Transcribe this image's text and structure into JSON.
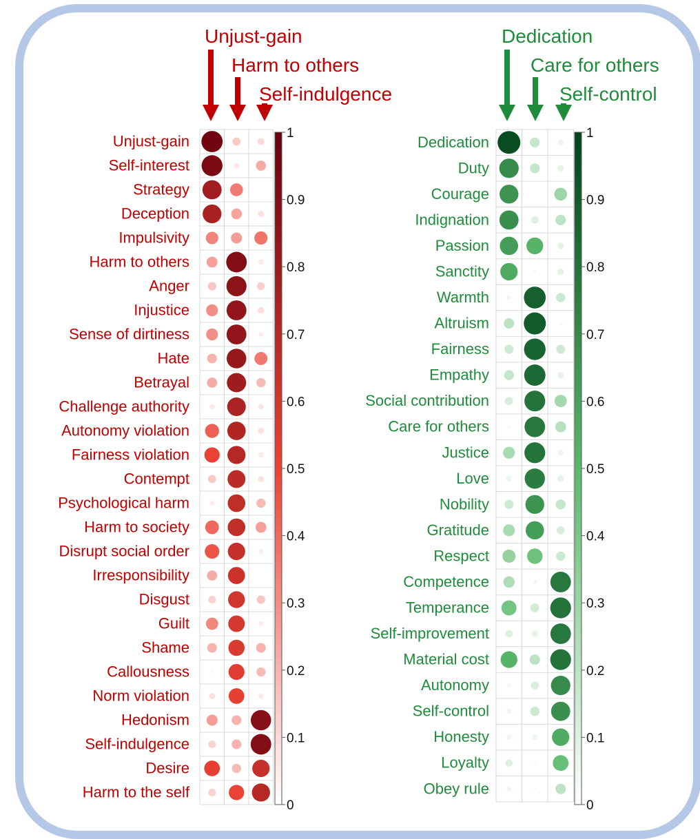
{
  "chart_data": [
    {
      "type": "heatmap",
      "style": "bubble",
      "headers": [
        "Unjust-gain",
        "Harm to others",
        "Self-indulgence"
      ],
      "rows": [
        "Unjust-gain",
        "Self-interest",
        "Strategy",
        "Deception",
        "Impulsivity",
        "Harm to others",
        "Anger",
        "Injustice",
        "Sense of dirtiness",
        "Hate",
        "Betrayal",
        "Challenge authority",
        "Autonomy violation",
        "Fairness violation",
        "Contempt",
        "Psychological harm",
        "Harm to society",
        "Disrupt social order",
        "Irresponsibility",
        "Disgust",
        "Guilt",
        "Shame",
        "Callousness",
        "Norm violation",
        "Hedonism",
        "Self-indulgence",
        "Desire",
        "Harm to the self"
      ],
      "values": [
        [
          0.96,
          0.14,
          0.1
        ],
        [
          0.93,
          0.06,
          0.22
        ],
        [
          0.78,
          0.35,
          0.0
        ],
        [
          0.75,
          0.24,
          0.08
        ],
        [
          0.33,
          0.26,
          0.37
        ],
        [
          0.25,
          0.9,
          0.06
        ],
        [
          0.15,
          0.86,
          0.13
        ],
        [
          0.3,
          0.84,
          0.09
        ],
        [
          0.3,
          0.84,
          0.05
        ],
        [
          0.2,
          0.82,
          0.36
        ],
        [
          0.22,
          0.79,
          0.18
        ],
        [
          0.06,
          0.74,
          0.07
        ],
        [
          0.42,
          0.72,
          0.08
        ],
        [
          0.5,
          0.7,
          0.06
        ],
        [
          0.14,
          0.68,
          0.08
        ],
        [
          0.05,
          0.66,
          0.18
        ],
        [
          0.4,
          0.66,
          0.25
        ],
        [
          0.45,
          0.64,
          0.05
        ],
        [
          0.22,
          0.62,
          0.0
        ],
        [
          0.12,
          0.6,
          0.15
        ],
        [
          0.32,
          0.58,
          0.05
        ],
        [
          0.2,
          0.56,
          0.2
        ],
        [
          0.02,
          0.54,
          0.18
        ],
        [
          0.08,
          0.52,
          0.06
        ],
        [
          0.26,
          0.2,
          0.88
        ],
        [
          0.12,
          0.2,
          0.9
        ],
        [
          0.52,
          0.18,
          0.64
        ],
        [
          0.12,
          0.5,
          0.7
        ]
      ],
      "legend": {
        "ticks": [
          "0",
          "0.1",
          "0.2",
          "0.3",
          "0.4",
          "0.5",
          "0.6",
          "0.7",
          "0.8",
          "0.9",
          "1"
        ],
        "range": [
          0,
          1
        ]
      },
      "colors": {
        "text": "#c00000",
        "low": "#ffffff",
        "mid": "#ea4335",
        "high": "#67000d",
        "arrow": "#c00000"
      }
    },
    {
      "type": "heatmap",
      "style": "bubble",
      "headers": [
        "Dedication",
        "Care for others",
        "Self-control"
      ],
      "rows": [
        "Dedication",
        "Duty",
        "Courage",
        "Indignation",
        "Passion",
        "Sanctity",
        "Warmth",
        "Altruism",
        "Fairness",
        "Empathy",
        "Social contribution",
        "Care for others",
        "Justice",
        "Love",
        "Nobility",
        "Gratitude",
        "Respect",
        "Competence",
        "Temperance",
        "Self-improvement",
        "Material cost",
        "Autonomy",
        "Self-control",
        "Honesty",
        "Loyalty",
        "Obey rule"
      ],
      "values": [
        [
          0.96,
          0.18,
          0.06
        ],
        [
          0.7,
          0.18,
          0.08
        ],
        [
          0.66,
          0.0,
          0.3
        ],
        [
          0.68,
          0.1,
          0.2
        ],
        [
          0.62,
          0.52,
          0.08
        ],
        [
          0.56,
          0.03,
          0.08
        ],
        [
          0.04,
          0.88,
          0.16
        ],
        [
          0.2,
          0.9,
          0.03
        ],
        [
          0.15,
          0.86,
          0.15
        ],
        [
          0.18,
          0.84,
          0.08
        ],
        [
          0.12,
          0.8,
          0.28
        ],
        [
          0.02,
          0.78,
          0.22
        ],
        [
          0.26,
          0.8,
          0.06
        ],
        [
          0.06,
          0.76,
          0.08
        ],
        [
          0.15,
          0.66,
          0.18
        ],
        [
          0.26,
          0.62,
          0.12
        ],
        [
          0.32,
          0.44,
          0.16
        ],
        [
          0.24,
          0.04,
          0.78
        ],
        [
          0.42,
          0.14,
          0.8
        ],
        [
          0.1,
          0.08,
          0.78
        ],
        [
          0.52,
          0.2,
          0.8
        ],
        [
          0.03,
          0.12,
          0.7
        ],
        [
          0.05,
          0.16,
          0.68
        ],
        [
          0.05,
          0.06,
          0.56
        ],
        [
          0.1,
          0.02,
          0.46
        ],
        [
          0.05,
          0.02,
          0.2
        ]
      ],
      "legend": {
        "ticks": [
          "0",
          "0.1",
          "0.2",
          "0.3",
          "0.4",
          "0.5",
          "0.6",
          "0.7",
          "0.8",
          "0.9",
          "1"
        ],
        "range": [
          0,
          1
        ]
      },
      "colors": {
        "text": "#1e8c3a",
        "low": "#ffffff",
        "mid": "#5ab96b",
        "high": "#00441b",
        "arrow": "#1e8c3a"
      }
    }
  ]
}
